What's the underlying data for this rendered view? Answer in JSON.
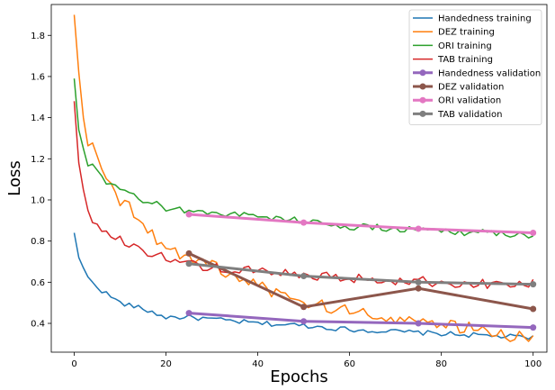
{
  "chart_data": {
    "type": "line",
    "xlabel": "Epochs",
    "ylabel": "Loss",
    "xlim": [
      -5,
      103
    ],
    "ylim": [
      0.26,
      1.95
    ],
    "xticks": [
      0,
      20,
      40,
      60,
      80,
      100
    ],
    "yticks": [
      0.4,
      0.6,
      0.8,
      1.0,
      1.2,
      1.4,
      1.6,
      1.8
    ],
    "legend_position": "top-right",
    "grid": false,
    "series": [
      {
        "name": "Handedness training",
        "color": "#1f77b4",
        "kind": "training",
        "anchors": [
          [
            0,
            0.84
          ],
          [
            1,
            0.72
          ],
          [
            3,
            0.62
          ],
          [
            6,
            0.56
          ],
          [
            10,
            0.5
          ],
          [
            15,
            0.47
          ],
          [
            20,
            0.43
          ],
          [
            25,
            0.43
          ],
          [
            30,
            0.42
          ],
          [
            40,
            0.4
          ],
          [
            50,
            0.39
          ],
          [
            60,
            0.37
          ],
          [
            70,
            0.36
          ],
          [
            80,
            0.35
          ],
          [
            90,
            0.34
          ],
          [
            100,
            0.33
          ]
        ],
        "noise": 0.012
      },
      {
        "name": "DEZ training",
        "color": "#ff7f0e",
        "kind": "training",
        "anchors": [
          [
            0,
            1.9
          ],
          [
            1,
            1.62
          ],
          [
            2,
            1.4
          ],
          [
            3,
            1.29
          ],
          [
            5,
            1.24
          ],
          [
            7,
            1.12
          ],
          [
            9,
            1.02
          ],
          [
            12,
            0.96
          ],
          [
            15,
            0.9
          ],
          [
            17,
            0.83
          ],
          [
            20,
            0.78
          ],
          [
            23,
            0.74
          ],
          [
            25,
            0.72
          ],
          [
            30,
            0.68
          ],
          [
            35,
            0.63
          ],
          [
            40,
            0.58
          ],
          [
            45,
            0.54
          ],
          [
            50,
            0.5
          ],
          [
            55,
            0.48
          ],
          [
            60,
            0.46
          ],
          [
            65,
            0.44
          ],
          [
            70,
            0.43
          ],
          [
            75,
            0.41
          ],
          [
            80,
            0.39
          ],
          [
            85,
            0.38
          ],
          [
            90,
            0.37
          ],
          [
            95,
            0.34
          ],
          [
            100,
            0.32
          ]
        ],
        "noise": 0.03
      },
      {
        "name": "ORI training",
        "color": "#2ca02c",
        "kind": "training",
        "anchors": [
          [
            0,
            1.59
          ],
          [
            1,
            1.34
          ],
          [
            2,
            1.25
          ],
          [
            3,
            1.17
          ],
          [
            5,
            1.15
          ],
          [
            7,
            1.07
          ],
          [
            10,
            1.05
          ],
          [
            15,
            1.0
          ],
          [
            20,
            0.96
          ],
          [
            25,
            0.95
          ],
          [
            30,
            0.94
          ],
          [
            40,
            0.92
          ],
          [
            50,
            0.9
          ],
          [
            60,
            0.87
          ],
          [
            70,
            0.86
          ],
          [
            80,
            0.85
          ],
          [
            90,
            0.84
          ],
          [
            100,
            0.83
          ]
        ],
        "noise": 0.018
      },
      {
        "name": "TAB training",
        "color": "#d62728",
        "kind": "training",
        "anchors": [
          [
            0,
            1.48
          ],
          [
            1,
            1.18
          ],
          [
            2,
            1.05
          ],
          [
            3,
            0.94
          ],
          [
            5,
            0.88
          ],
          [
            7,
            0.84
          ],
          [
            10,
            0.8
          ],
          [
            15,
            0.76
          ],
          [
            20,
            0.72
          ],
          [
            25,
            0.69
          ],
          [
            30,
            0.67
          ],
          [
            40,
            0.65
          ],
          [
            50,
            0.63
          ],
          [
            60,
            0.62
          ],
          [
            70,
            0.61
          ],
          [
            80,
            0.6
          ],
          [
            90,
            0.59
          ],
          [
            100,
            0.59
          ]
        ],
        "noise": 0.025
      },
      {
        "name": "Handedness validation",
        "color": "#9467bd",
        "kind": "validation",
        "x": [
          25,
          50,
          75,
          100
        ],
        "values": [
          0.45,
          0.41,
          0.4,
          0.38
        ]
      },
      {
        "name": "DEZ validation",
        "color": "#8c564b",
        "kind": "validation",
        "x": [
          25,
          50,
          75,
          100
        ],
        "values": [
          0.74,
          0.48,
          0.57,
          0.47
        ]
      },
      {
        "name": "ORI validation",
        "color": "#e377c2",
        "kind": "validation",
        "x": [
          25,
          50,
          75,
          100
        ],
        "values": [
          0.93,
          0.89,
          0.86,
          0.84
        ]
      },
      {
        "name": "TAB validation",
        "color": "#7f7f7f",
        "kind": "validation",
        "x": [
          25,
          50,
          75,
          100
        ],
        "values": [
          0.69,
          0.63,
          0.6,
          0.59
        ]
      }
    ]
  }
}
